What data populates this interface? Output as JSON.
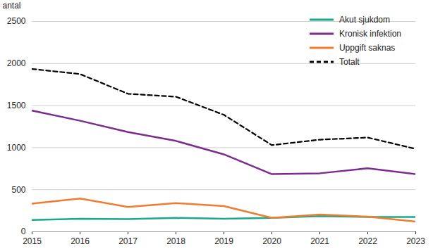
{
  "chart_data": {
    "type": "line",
    "y_label": "antal",
    "x": [
      2015,
      2016,
      2017,
      2018,
      2019,
      2020,
      2021,
      2022,
      2023
    ],
    "xlim": [
      2015,
      2023
    ],
    "xticks": [
      2015,
      2016,
      2017,
      2018,
      2019,
      2020,
      2021,
      2022,
      2023
    ],
    "ylim": [
      0,
      2500
    ],
    "yticks": [
      0,
      500,
      1000,
      1500,
      2000,
      2500
    ],
    "grid": true,
    "legend": "upper right",
    "series": [
      {
        "name": "Akut sjukdom",
        "color": "#1aa88a",
        "line_style": "solid",
        "values": [
          140,
          155,
          150,
          165,
          155,
          165,
          185,
          175,
          175
        ]
      },
      {
        "name": "Kronisk infektion",
        "color": "#7b2d8e",
        "line_style": "solid",
        "values": [
          1440,
          1320,
          1185,
          1080,
          920,
          685,
          695,
          755,
          685
        ]
      },
      {
        "name": "Uppgift saknas",
        "color": "#f07c30",
        "line_style": "solid",
        "values": [
          335,
          395,
          295,
          340,
          305,
          165,
          205,
          180,
          120
        ]
      },
      {
        "name": "Totalt",
        "color": "#000000",
        "line_style": "dashed",
        "values": [
          1935,
          1875,
          1640,
          1605,
          1390,
          1030,
          1095,
          1120,
          985
        ]
      }
    ]
  }
}
